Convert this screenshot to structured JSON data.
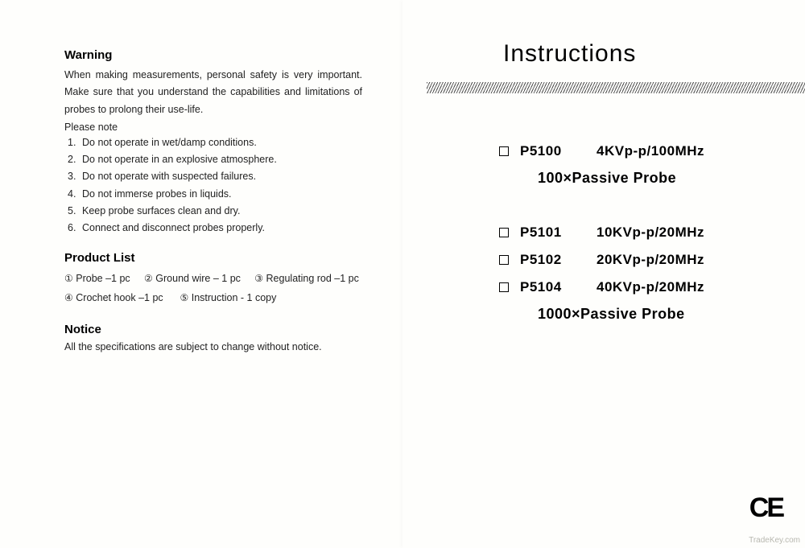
{
  "left": {
    "warning_heading": "Warning",
    "warning_body": "When making measurements, personal safety is very important. Make sure that you understand the capabilities and limitations of probes to prolong their use-life.",
    "please_note": "Please note",
    "warning_items": [
      "Do not operate in wet/damp conditions.",
      "Do not operate in an explosive atmosphere.",
      "Do not operate with suspected failures.",
      "Do not immerse probes in liquids.",
      "Keep probe surfaces clean and dry.",
      "Connect and disconnect probes properly."
    ],
    "product_list_heading": "Product List",
    "product_items": [
      "Probe –1 pc",
      "Ground wire – 1 pc",
      "Regulating rod –1 pc",
      "Crochet hook –1 pc",
      "Instruction - 1 copy"
    ],
    "circled_numbers": [
      "①",
      "②",
      "③",
      "④",
      "⑤"
    ],
    "notice_heading": "Notice",
    "notice_body": "All the specifications are subject to change without notice."
  },
  "right": {
    "title": "Instructions",
    "group1": {
      "models": [
        {
          "name": "P5100",
          "spec": "4KVp-p/100MHz"
        }
      ],
      "label": "100×Passive Probe"
    },
    "group2": {
      "models": [
        {
          "name": "P5101",
          "spec": "10KVp-p/20MHz"
        },
        {
          "name": "P5102",
          "spec": "20KVp-p/20MHz"
        },
        {
          "name": "P5104",
          "spec": "40KVp-p/20MHz"
        }
      ],
      "label": "1000×Passive Probe"
    },
    "ce": "CE",
    "watermark": "TradeKey.com"
  },
  "colors": {
    "text": "#1a1a1a",
    "background": "#fdfdfb",
    "hatch": "#555555"
  }
}
